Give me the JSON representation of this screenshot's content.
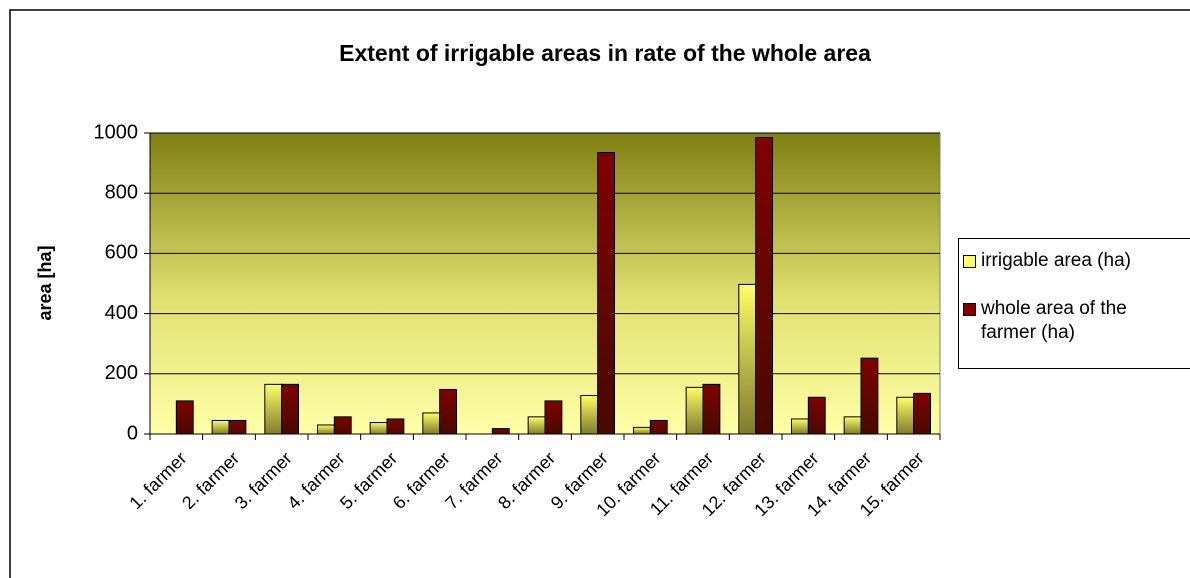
{
  "chart_data": {
    "type": "bar",
    "title": "Extent of irrigable areas in rate of the whole area",
    "y_label": "area [ha]",
    "categories": [
      "1. farmer",
      "2. farmer",
      "3. farmer",
      "4. farmer",
      "5. farmer",
      "6. farmer",
      "7. farmer",
      "8. farmer",
      "9. farmer",
      "10. farmer",
      "11. farmer",
      "12. farmer",
      "13. farmer",
      "14. farmer",
      "15. farmer"
    ],
    "series": [
      {
        "name": "irrigable area (ha)",
        "color": "#ffff66",
        "values": [
          0,
          45,
          165,
          30,
          38,
          70,
          0,
          57,
          128,
          22,
          155,
          497,
          50,
          57,
          122
        ]
      },
      {
        "name": "whole area of the farmer (ha)",
        "color": "#800000",
        "values": [
          110,
          45,
          165,
          57,
          50,
          148,
          18,
          110,
          935,
          45,
          165,
          985,
          122,
          252,
          135
        ]
      }
    ],
    "ylim": [
      0,
      1000
    ],
    "yticks": [
      0,
      200,
      400,
      600,
      800,
      1000
    ],
    "grid": true
  }
}
